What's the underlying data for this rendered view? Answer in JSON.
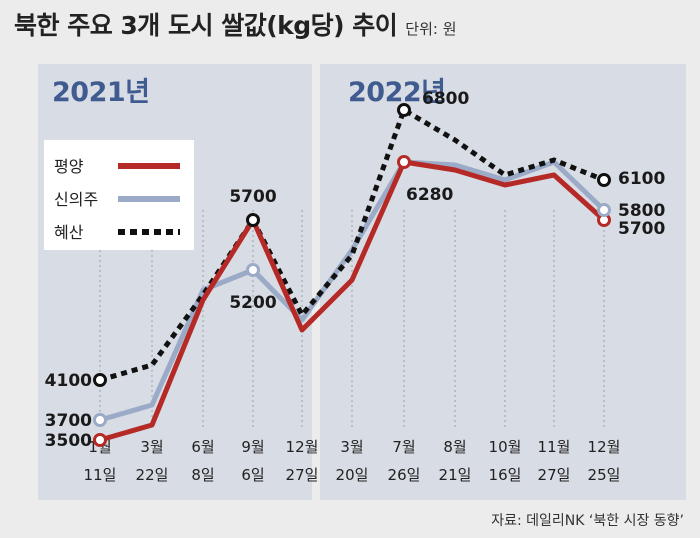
{
  "title": "북한 주요 3개 도시 쌀값(kg당) 추이",
  "unit": "단위: 원",
  "source": "자료: 데일리NK ‘북한 시장 동향’",
  "panels": {
    "left_year": "2021년",
    "right_year": "2022년"
  },
  "chart_data": {
    "type": "line",
    "categories": [
      {
        "month": "1월",
        "day": "11일"
      },
      {
        "month": "3월",
        "day": "22일"
      },
      {
        "month": "6월",
        "day": "8일"
      },
      {
        "month": "9월",
        "day": "6일"
      },
      {
        "month": "12월",
        "day": "27일"
      },
      {
        "month": "3월",
        "day": "20일"
      },
      {
        "month": "7월",
        "day": "26일"
      },
      {
        "month": "8월",
        "day": "21일"
      },
      {
        "month": "10월",
        "day": "16일"
      },
      {
        "month": "11월",
        "day": "27일"
      },
      {
        "month": "12월",
        "day": "25일"
      }
    ],
    "series": [
      {
        "name": "평양",
        "color": "#b52a26",
        "style": "solid",
        "values": [
          3500,
          3650,
          4900,
          5700,
          4600,
          5100,
          6280,
          6200,
          6050,
          6150,
          5700
        ]
      },
      {
        "name": "신의주",
        "color": "#9aaac7",
        "style": "solid",
        "values": [
          3700,
          3850,
          5000,
          5200,
          4700,
          5400,
          6280,
          6250,
          6100,
          6280,
          5800
        ]
      },
      {
        "name": "혜산",
        "color": "#111111",
        "style": "dotted",
        "values": [
          4100,
          4250,
          4950,
          5700,
          4750,
          5350,
          6800,
          6500,
          6150,
          6300,
          6100
        ]
      }
    ],
    "data_labels": [
      {
        "series": "평양",
        "index": 0,
        "text": "3500"
      },
      {
        "series": "신의주",
        "index": 0,
        "text": "3700"
      },
      {
        "series": "혜산",
        "index": 0,
        "text": "4100"
      },
      {
        "series": "혜산",
        "index": 3,
        "text": "5700"
      },
      {
        "series": "신의주",
        "index": 3,
        "text": "5200"
      },
      {
        "series": "혜산",
        "index": 6,
        "text": "6800"
      },
      {
        "series": "평양",
        "index": 6,
        "text": "6280"
      },
      {
        "series": "혜산",
        "index": 10,
        "text": "6100"
      },
      {
        "series": "신의주",
        "index": 10,
        "text": "5800"
      },
      {
        "series": "평양",
        "index": 10,
        "text": "5700"
      }
    ],
    "ylim": [
      3000,
      7200
    ],
    "legend": "top-left"
  }
}
